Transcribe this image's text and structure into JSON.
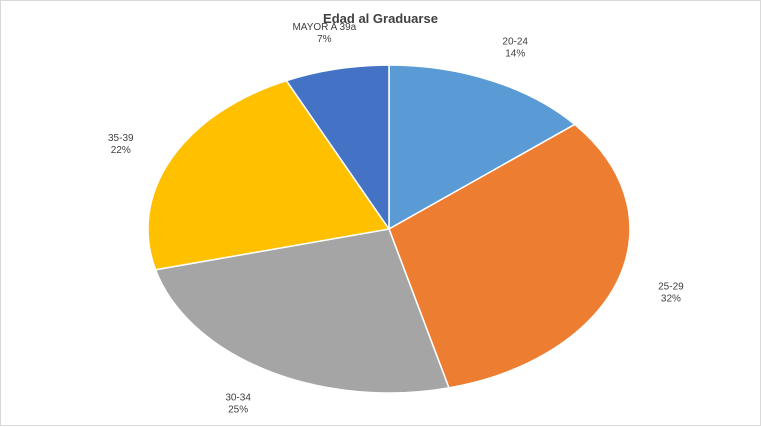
{
  "chart_data": {
    "type": "pie",
    "title": "Edad al Graduarse",
    "slices": [
      {
        "label": "20-24",
        "value": 14,
        "value_label": "14%",
        "color": "#5B9BD5"
      },
      {
        "label": "25-29",
        "value": 32,
        "value_label": "32%",
        "color": "#ED7D31"
      },
      {
        "label": "30-34",
        "value": 25,
        "value_label": "25%",
        "color": "#A5A5A5"
      },
      {
        "label": "35-39",
        "value": 22,
        "value_label": "22%",
        "color": "#FFC000"
      },
      {
        "label": "MAYOR A 39a",
        "value": 7,
        "value_label": "7%",
        "color": "#4472C4"
      }
    ],
    "legend": "none",
    "data_labels": "outside, category name and percentage"
  }
}
